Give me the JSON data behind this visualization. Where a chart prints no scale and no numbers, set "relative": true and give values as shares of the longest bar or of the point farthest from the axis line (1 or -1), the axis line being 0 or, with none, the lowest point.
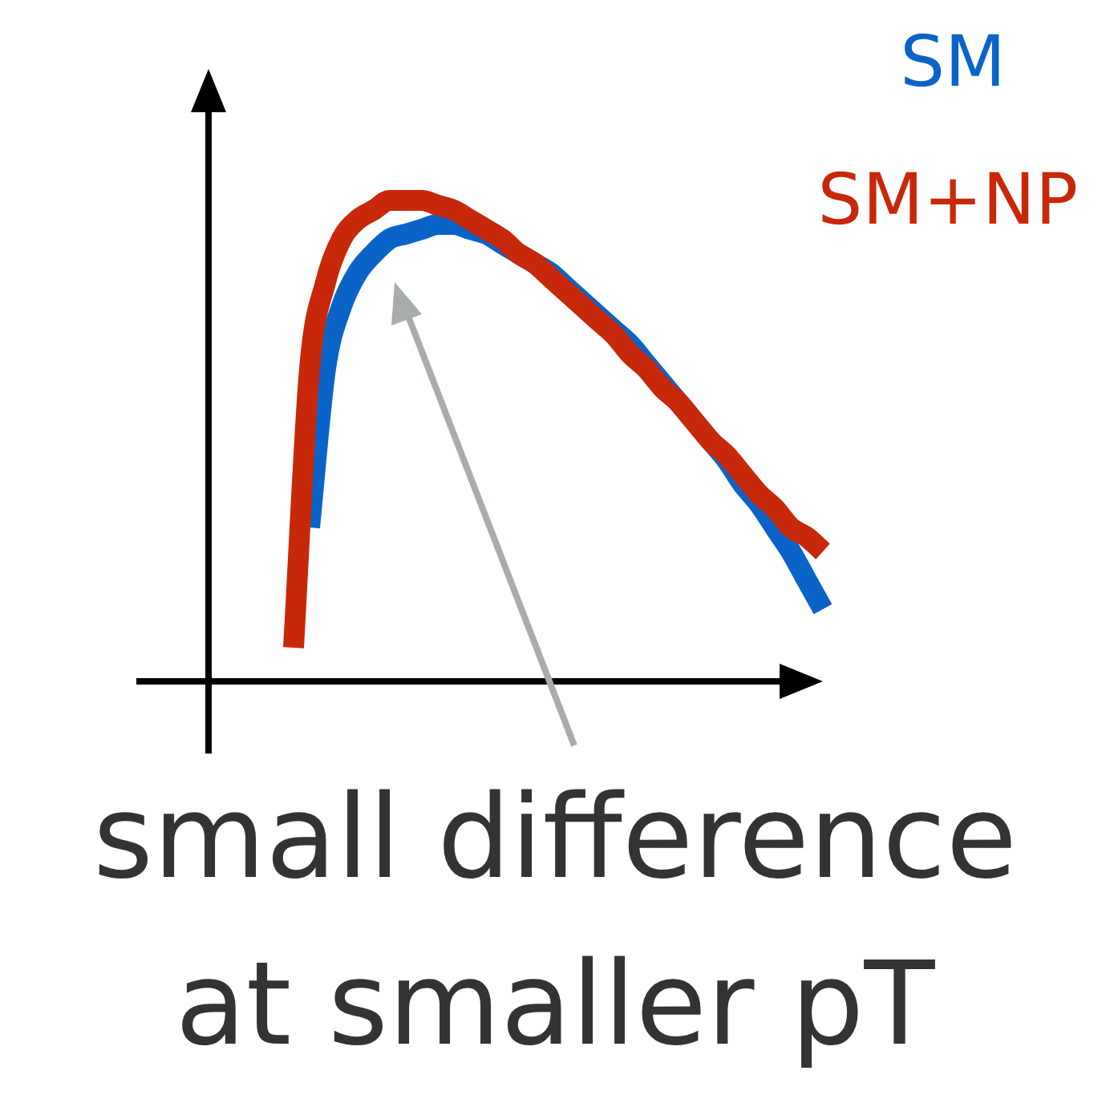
{
  "chart_data": {
    "type": "line",
    "relative": true,
    "legend": "top right",
    "annotations": [
      "small difference at smaller pT"
    ],
    "categories": [
      null,
      null,
      null,
      null,
      null,
      null,
      null,
      null,
      null,
      null,
      null,
      null,
      null,
      null,
      null,
      null,
      null,
      null,
      null,
      null,
      null,
      null,
      null,
      null,
      null,
      null,
      null,
      null,
      null,
      null,
      null,
      null,
      null,
      null
    ],
    "series": [
      {
        "name": "SM",
        "color": "#0a64c8",
        "values": [
          null,
          0.32,
          0.65,
          0.78,
          0.85,
          0.89,
          0.92,
          0.93,
          0.94,
          0.95,
          0.95,
          0.94,
          0.93,
          0.91,
          0.89,
          0.87,
          0.85,
          0.82,
          0.79,
          0.76,
          0.73,
          0.7,
          0.66,
          0.62,
          0.58,
          null,
          0.5,
          0.46,
          0.41,
          0.37,
          0.32,
          0.27,
          0.21,
          0.15
        ]
      },
      {
        "name": "SM+NP",
        "color": "#c8280a",
        "values": [
          0.07,
          0.65,
          0.83,
          0.92,
          0.96,
          0.98,
          1.0,
          1.0,
          1.0,
          0.99,
          0.98,
          0.96,
          0.94,
          0.92,
          0.89,
          0.87,
          0.84,
          0.81,
          0.78,
          0.75,
          0.72,
          0.68,
          0.65,
          0.61,
          0.58,
          0.54,
          0.5,
          0.47,
          0.43,
          0.39,
          0.36,
          0.32,
          0.3,
          0.27
        ]
      }
    ]
  }
}
